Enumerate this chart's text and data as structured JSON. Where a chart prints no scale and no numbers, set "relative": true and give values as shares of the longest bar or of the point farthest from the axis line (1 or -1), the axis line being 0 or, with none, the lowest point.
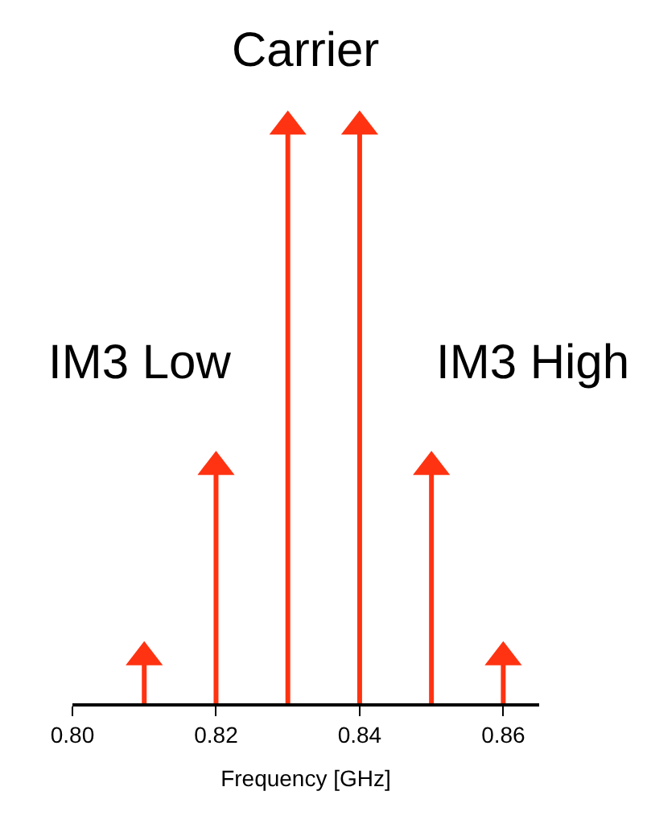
{
  "chart_data": {
    "type": "lollipop",
    "relative": true,
    "color": "#ff3311",
    "x": [
      0.81,
      0.82,
      0.83,
      0.84,
      0.85,
      0.86
    ],
    "values": [
      0.08,
      0.41,
      1,
      1,
      0.41,
      0.08
    ],
    "xlim": [
      0.8,
      0.865
    ],
    "xticks": [
      {
        "value": 0.8,
        "label": "0.80"
      },
      {
        "value": 0.82,
        "label": "0.82"
      },
      {
        "value": 0.84,
        "label": "0.84"
      },
      {
        "value": 0.86,
        "label": "0.86"
      }
    ],
    "xlabel": "Frequency [GHz]",
    "annotations": [
      "Carrier",
      "IM3 Low",
      "IM3 High"
    ],
    "marker": "triangle"
  }
}
